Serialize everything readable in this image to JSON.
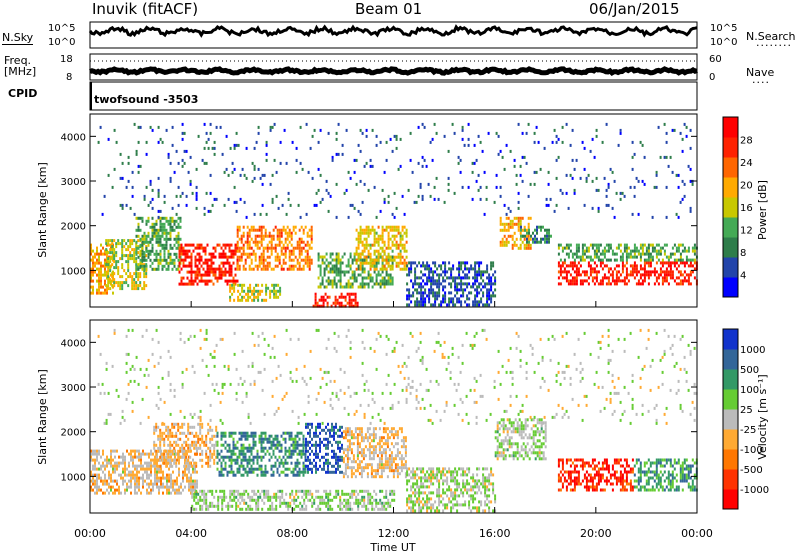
{
  "header": {
    "station": "Inuvik (fitACF)",
    "beam": "Beam 01",
    "date": "06/Jan/2015"
  },
  "noise_panel": {
    "left_label": "N.Sky",
    "left_ticks": [
      "10^5",
      "10^0"
    ],
    "right_ticks": [
      "10^5",
      "10^0"
    ],
    "right_label": "N.Search",
    "right_dots": "........"
  },
  "freq_panel": {
    "left_label_1": "Freq.",
    "left_label_2": "[MHz]",
    "left_ticks": [
      "18",
      "8"
    ],
    "right_ticks": [
      "60",
      "0"
    ],
    "right_label": "Nave",
    "right_dots": "...."
  },
  "cpid_panel": {
    "label": "CPID",
    "value": "twofsound -3503"
  },
  "colors": {
    "power_scale": [
      "#0000ff",
      "#2244aa",
      "#2e7d4a",
      "#44aa55",
      "#c8c800",
      "#ffaa00",
      "#ff6600",
      "#ff2200",
      "#ff0000"
    ],
    "velocity_scale": [
      "#ff0000",
      "#ff3300",
      "#ff7700",
      "#ffaa33",
      "#bbbbbb",
      "#66cc33",
      "#339966",
      "#336699",
      "#1133cc"
    ]
  },
  "chart_data": [
    {
      "type": "heatmap",
      "name": "power",
      "ylabel": "Slant Range [km]",
      "yticks": [
        "1000",
        "2000",
        "3000",
        "4000"
      ],
      "ylim": [
        180,
        4500
      ],
      "xlim": [
        0,
        24
      ],
      "colorbar": {
        "label": "Power [dB]",
        "ticks": [
          "28",
          "24",
          "20",
          "16",
          "12",
          "8",
          "4"
        ],
        "range": [
          0,
          32
        ]
      },
      "regions": [
        {
          "t0": 0.0,
          "t1": 0.9,
          "r0": 500,
          "r1": 1600,
          "value": 20
        },
        {
          "t0": 0.6,
          "t1": 2.2,
          "r0": 600,
          "r1": 1700,
          "value": 16
        },
        {
          "t0": 1.8,
          "t1": 3.6,
          "r0": 1000,
          "r1": 2200,
          "value": 12
        },
        {
          "t0": 3.5,
          "t1": 5.8,
          "r0": 700,
          "r1": 1600,
          "value": 28
        },
        {
          "t0": 5.8,
          "t1": 8.8,
          "r0": 1000,
          "r1": 2000,
          "value": 22
        },
        {
          "t0": 5.5,
          "t1": 7.5,
          "r0": 350,
          "r1": 700,
          "value": 16
        },
        {
          "t0": 8.8,
          "t1": 10.6,
          "r0": 200,
          "r1": 500,
          "value": 28
        },
        {
          "t0": 9.0,
          "t1": 12.0,
          "r0": 600,
          "r1": 1400,
          "value": 12
        },
        {
          "t0": 10.5,
          "t1": 12.5,
          "r0": 1000,
          "r1": 2000,
          "value": 18
        },
        {
          "t0": 12.5,
          "t1": 16.0,
          "r0": 200,
          "r1": 1200,
          "value": 6
        },
        {
          "t0": 16.2,
          "t1": 17.4,
          "r0": 1500,
          "r1": 2200,
          "value": 20
        },
        {
          "t0": 17.0,
          "t1": 18.2,
          "r0": 1600,
          "r1": 2000,
          "value": 10
        },
        {
          "t0": 18.5,
          "t1": 24.0,
          "r0": 700,
          "r1": 1200,
          "value": 28
        },
        {
          "t0": 18.5,
          "t1": 24.0,
          "r0": 1200,
          "r1": 1600,
          "value": 12
        },
        {
          "t0": 0.3,
          "t1": 24.0,
          "r0": 2200,
          "r1": 4300,
          "value": 6
        }
      ]
    },
    {
      "type": "heatmap",
      "name": "velocity",
      "ylabel": "Slant Range [km]",
      "yticks": [
        "1000",
        "2000",
        "3000",
        "4000"
      ],
      "ylim": [
        180,
        4500
      ],
      "xlim": [
        0,
        24
      ],
      "xticks": [
        "00:00",
        "04:00",
        "08:00",
        "12:00",
        "16:00",
        "20:00",
        "00:00"
      ],
      "xlabel": "Time UT",
      "colorbar": {
        "label": "Velocity [m s⁻¹]",
        "ticks": [
          "1000",
          "500",
          "100",
          "25",
          "-25",
          "-100",
          "-500",
          "-1000"
        ],
        "range": [
          -1200,
          1200
        ]
      },
      "regions": [
        {
          "t0": 0.0,
          "t1": 4.2,
          "r0": 600,
          "r1": 1600,
          "value": -150
        },
        {
          "t0": 2.5,
          "t1": 5.0,
          "r0": 1200,
          "r1": 2200,
          "value": -200
        },
        {
          "t0": 5.0,
          "t1": 8.5,
          "r0": 1000,
          "r1": 2000,
          "value": 600
        },
        {
          "t0": 8.5,
          "t1": 10.0,
          "r0": 1100,
          "r1": 2200,
          "value": 900
        },
        {
          "t0": 10.0,
          "t1": 12.5,
          "r0": 1000,
          "r1": 2100,
          "value": -150
        },
        {
          "t0": 4.0,
          "t1": 12.0,
          "r0": 250,
          "r1": 700,
          "value": 150
        },
        {
          "t0": 12.5,
          "t1": 16.0,
          "r0": 200,
          "r1": 1200,
          "value": 80
        },
        {
          "t0": 16.0,
          "t1": 18.0,
          "r0": 1400,
          "r1": 2300,
          "value": 120
        },
        {
          "t0": 18.5,
          "t1": 21.5,
          "r0": 700,
          "r1": 1400,
          "value": -900
        },
        {
          "t0": 21.5,
          "t1": 24.0,
          "r0": 700,
          "r1": 1400,
          "value": 500
        },
        {
          "t0": 0.3,
          "t1": 24.0,
          "r0": 2200,
          "r1": 4300,
          "value": 60
        }
      ]
    }
  ]
}
